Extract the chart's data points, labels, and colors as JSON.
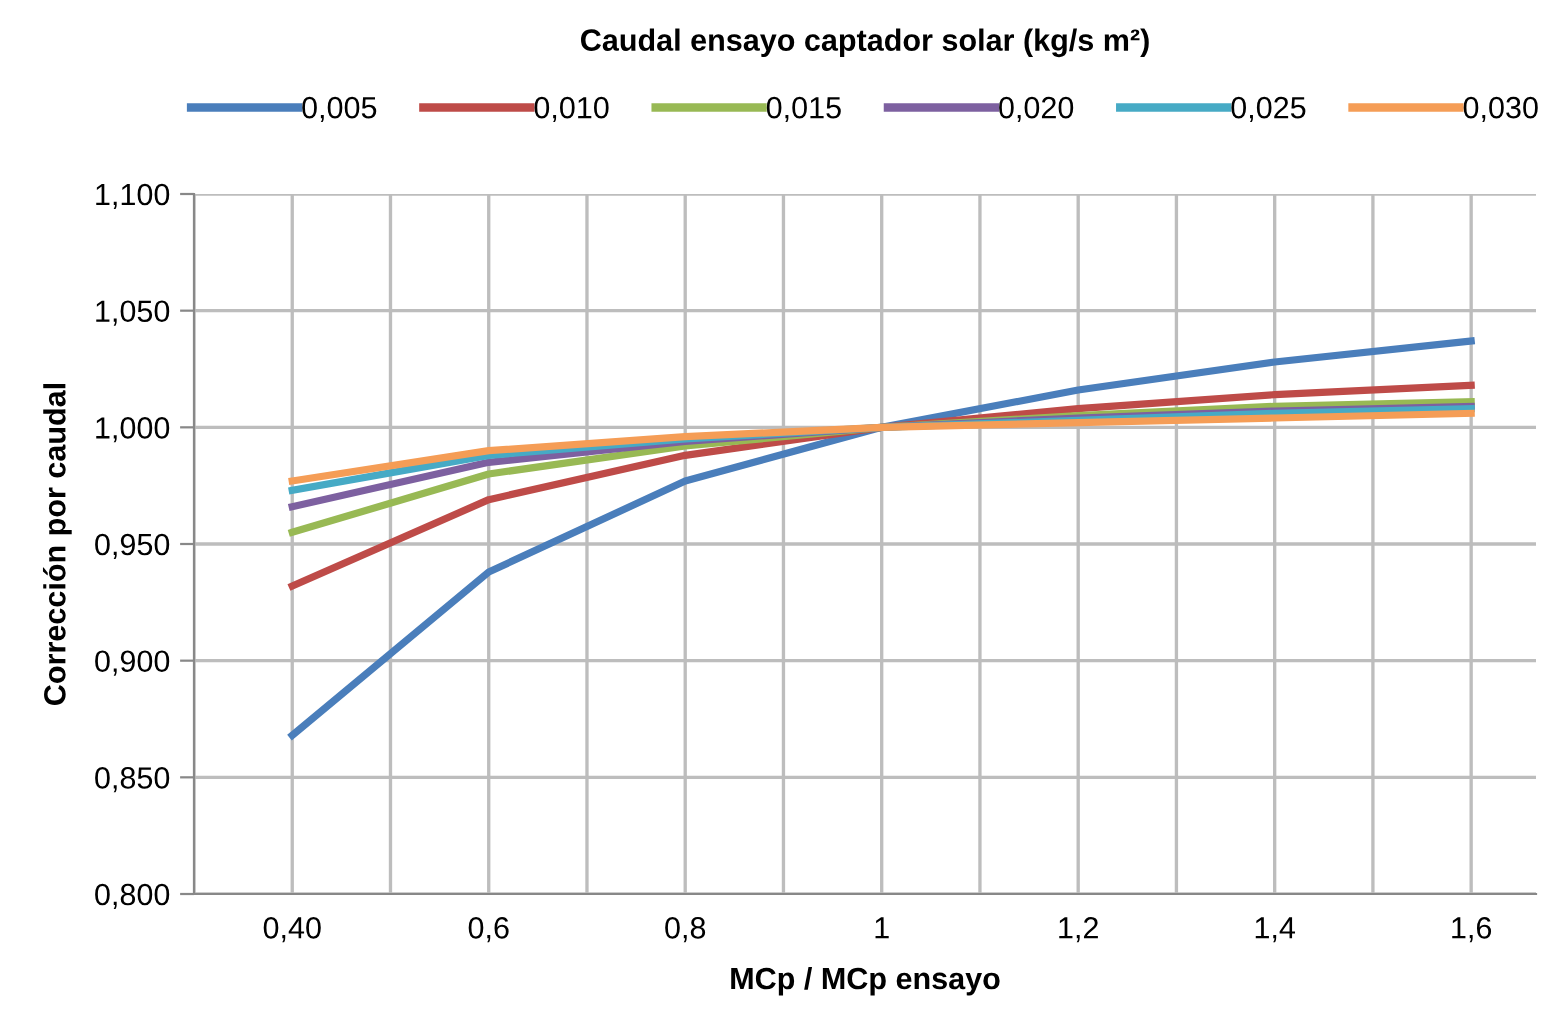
{
  "chart_data": {
    "type": "line",
    "legend_title": "Caudal ensayo captador solar (kg/s m²)",
    "xlabel": "MCp / MCp ensayo",
    "ylabel": "Corrección por caudal",
    "categories": [
      "0,40",
      "0,6",
      "0,8",
      "1",
      "1,2",
      "1,4",
      "1,6"
    ],
    "series": [
      {
        "name": "0,005",
        "color": "#4a7ebb",
        "values": [
          0.868,
          0.938,
          0.977,
          1.0,
          1.016,
          1.028,
          1.037
        ]
      },
      {
        "name": "0,010",
        "color": "#be4b48",
        "values": [
          0.932,
          0.969,
          0.988,
          1.0,
          1.008,
          1.014,
          1.018
        ]
      },
      {
        "name": "0,015",
        "color": "#98b954",
        "values": [
          0.955,
          0.98,
          0.992,
          1.0,
          1.005,
          1.009,
          1.011
        ]
      },
      {
        "name": "0,020",
        "color": "#7d60a0",
        "values": [
          0.966,
          0.985,
          0.994,
          1.0,
          1.004,
          1.007,
          1.009
        ]
      },
      {
        "name": "0,025",
        "color": "#46aac5",
        "values": [
          0.973,
          0.988,
          0.995,
          1.0,
          1.003,
          1.006,
          1.008
        ]
      },
      {
        "name": "0,030",
        "color": "#f59d56",
        "values": [
          0.977,
          0.99,
          0.996,
          1.0,
          1.002,
          1.004,
          1.006
        ]
      }
    ],
    "ylim": [
      0.8,
      1.1
    ],
    "yticks": [
      {
        "value": 0.8,
        "label": "0,800"
      },
      {
        "value": 0.85,
        "label": "0,850"
      },
      {
        "value": 0.9,
        "label": "0,900"
      },
      {
        "value": 0.95,
        "label": "0,950"
      },
      {
        "value": 1.0,
        "label": "1,000"
      },
      {
        "value": 1.05,
        "label": "1,050"
      },
      {
        "value": 1.1,
        "label": "1,100"
      }
    ],
    "grid": true,
    "legend": "top",
    "marker": "none",
    "line_style": "solid"
  }
}
